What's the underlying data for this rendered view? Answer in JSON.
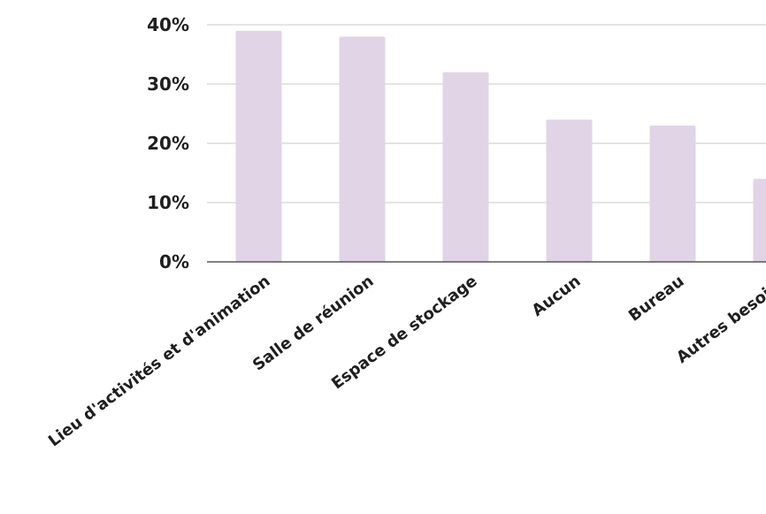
{
  "chart_data": {
    "type": "bar",
    "title": "",
    "xlabel": "",
    "ylabel": "",
    "categories": [
      "Lieu d'activités et d'animation",
      "Salle de réunion",
      "Espace de stockage",
      "Aucun",
      "Bureau",
      "Autres besoins"
    ],
    "values": [
      39,
      38,
      32,
      24,
      23,
      14
    ],
    "ylim": [
      0,
      40
    ],
    "yticks": [
      0,
      10,
      20,
      30,
      40
    ],
    "ytick_labels": [
      "0%",
      "10%",
      "20%",
      "30%",
      "40%"
    ],
    "grid": "horizontal",
    "legend": "none",
    "bar_color": "#e1d4e7",
    "grid_color": "#c8c8c8",
    "axis_color": "#555555",
    "text_color": "#1f1f1f"
  }
}
